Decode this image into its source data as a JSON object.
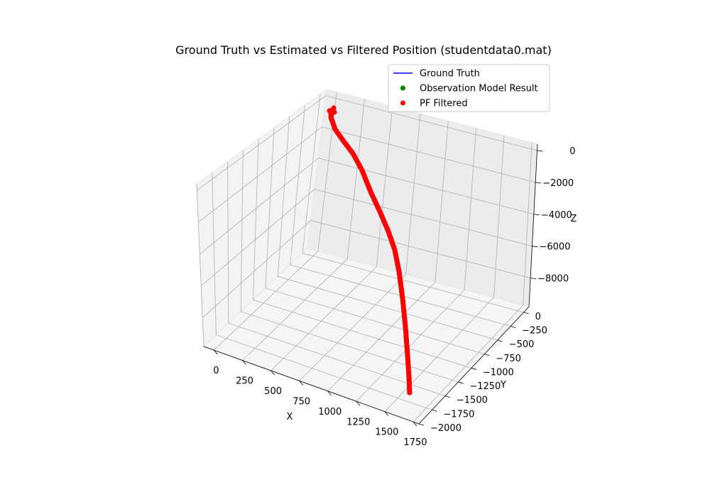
{
  "chart_data": {
    "type": "scatter3d",
    "title": "Ground Truth vs Estimated vs Filtered Position (studentdata0.mat)",
    "xlabel": "X",
    "ylabel": "Y",
    "zlabel": "Z",
    "x_ticks": [
      0,
      250,
      500,
      750,
      1000,
      1250,
      1500,
      1750
    ],
    "y_ticks": [
      0,
      -250,
      -500,
      -750,
      -1000,
      -1250,
      -1500,
      -1750,
      -2000
    ],
    "z_ticks": [
      0,
      -2000,
      -4000,
      -6000,
      -8000
    ],
    "x_tick_labels": [
      "0",
      "250",
      "500",
      "750",
      "1000",
      "1250",
      "1500",
      "1750"
    ],
    "y_tick_labels": [
      "0",
      "−250",
      "−500",
      "−750",
      "−1000",
      "−1250",
      "−1500",
      "−1750",
      "−2000"
    ],
    "z_tick_labels": [
      "0",
      "−2000",
      "−4000",
      "−6000",
      "−8000"
    ],
    "legend_position": "top-right",
    "grid": true,
    "legend": [
      {
        "name": "Ground Truth",
        "marker": "line",
        "color": "#0000ff"
      },
      {
        "name": "Observation Model Result",
        "marker": "dot",
        "color": "#008000"
      },
      {
        "name": "PF Filtered",
        "marker": "dot",
        "color": "#ff0000"
      }
    ],
    "series": [
      {
        "name": "PF Filtered",
        "color": "#ff0000"
      }
    ]
  }
}
